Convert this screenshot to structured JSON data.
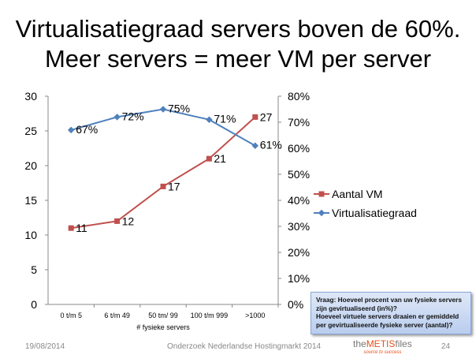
{
  "title": {
    "line1": "Virtualisatiegraad servers boven de 60%.",
    "line2": "Meer servers = meer VM per server"
  },
  "chart_data": {
    "type": "line",
    "categories": [
      "0 t/m 5",
      "6 t/m 49",
      "50 tm/ 99",
      "100 t/m 999",
      ">1000"
    ],
    "xlabel": "# fysieke servers",
    "left_axis": {
      "ylim": [
        0,
        30
      ],
      "ticks": [
        "0",
        "5",
        "10",
        "15",
        "20",
        "25",
        "30"
      ]
    },
    "right_axis": {
      "ylim": [
        0,
        80
      ],
      "ticks": [
        "0%",
        "10%",
        "20%",
        "30%",
        "40%",
        "50%",
        "60%",
        "70%",
        "80%"
      ]
    },
    "series": [
      {
        "name": "Aantal VM",
        "axis": "left",
        "values": [
          11,
          12,
          17,
          21,
          27
        ],
        "labels": [
          "11",
          "12",
          "17",
          "21",
          "27"
        ],
        "color": "#c0504d"
      },
      {
        "name": "Virtualisatiegraad",
        "axis": "right",
        "values": [
          67,
          72,
          75,
          71,
          61
        ],
        "labels": [
          "67%",
          "72%",
          "75%",
          "71%",
          "61%"
        ],
        "color": "#4f81bd"
      }
    ],
    "legend": "right"
  },
  "note": {
    "line1": "Vraag: Hoeveel procent van uw fysieke servers zijn gevirtualiseerd (in%)?",
    "line2": "Hoeveel virtuele servers draaien er gemiddeld per gevirtualiseerde fysieke server (aantal)?"
  },
  "footer": {
    "date": "19/08/2014",
    "center": "Onderzoek Nederlandse Hostingmarkt 2014",
    "page": "24",
    "logo_the": "the",
    "logo_metis": "METIS",
    "logo_files": "files",
    "logo_tag": "source to success"
  }
}
